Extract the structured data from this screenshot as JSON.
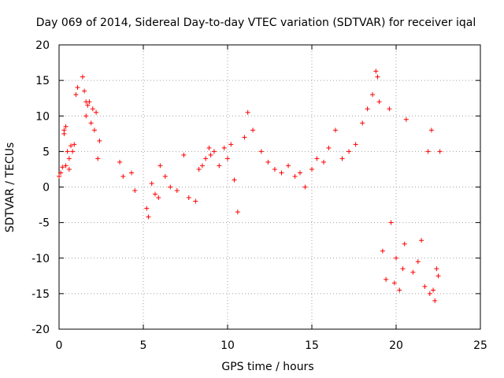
{
  "chart_data": {
    "type": "scatter",
    "title": "Day 069 of 2014, Sidereal Day-to-day VTEC variation (SDTVAR) for receiver iqal",
    "xlabel": "GPS time / hours",
    "ylabel": "SDTVAR / TECUs",
    "xlim": [
      0,
      25
    ],
    "ylim": [
      -20,
      20
    ],
    "xticks": [
      0,
      5,
      10,
      15,
      20,
      25
    ],
    "yticks": [
      -20,
      -15,
      -10,
      -5,
      0,
      5,
      10,
      15,
      20
    ],
    "grid": true,
    "marker": "plus",
    "color": "#ff0000",
    "series": [
      {
        "name": "SDTVAR",
        "x": [
          0.0,
          0.1,
          0.2,
          0.3,
          0.3,
          0.4,
          0.4,
          0.5,
          0.6,
          0.6,
          0.7,
          0.8,
          0.9,
          1.0,
          1.1,
          1.4,
          1.5,
          1.6,
          1.6,
          1.7,
          1.8,
          1.9,
          2.0,
          2.1,
          2.2,
          2.3,
          2.4,
          3.6,
          3.8,
          4.3,
          4.5,
          5.2,
          5.3,
          5.5,
          5.7,
          5.9,
          6.0,
          6.3,
          6.6,
          7.0,
          7.4,
          7.7,
          8.1,
          8.3,
          8.5,
          8.7,
          8.9,
          9.0,
          9.2,
          9.5,
          9.8,
          10.0,
          10.2,
          10.4,
          10.6,
          11.0,
          11.2,
          11.5,
          12.0,
          12.4,
          12.8,
          13.2,
          13.6,
          14.0,
          14.3,
          14.6,
          15.0,
          15.3,
          15.7,
          16.0,
          16.4,
          16.8,
          17.2,
          17.6,
          18.0,
          18.3,
          18.6,
          18.8,
          18.9,
          19.0,
          19.2,
          19.4,
          19.6,
          19.7,
          19.9,
          20.0,
          20.2,
          20.4,
          20.5,
          20.6,
          21.0,
          21.3,
          21.5,
          21.7,
          21.9,
          22.0,
          22.1,
          22.2,
          22.3,
          22.4,
          22.5,
          22.6
        ],
        "y": [
          1.5,
          2.0,
          2.8,
          8.0,
          7.5,
          3.0,
          8.5,
          5.0,
          2.5,
          4.0,
          5.8,
          5.0,
          6.0,
          13.0,
          14.0,
          15.5,
          13.5,
          12.0,
          10.0,
          11.5,
          12.0,
          9.0,
          11.0,
          8.0,
          10.5,
          4.0,
          6.5,
          3.5,
          1.5,
          2.0,
          -0.5,
          -3.0,
          -4.2,
          0.5,
          -1.0,
          -1.5,
          3.0,
          1.5,
          0.0,
          -0.5,
          4.5,
          -1.5,
          -2.0,
          2.5,
          3.0,
          4.0,
          5.5,
          4.5,
          5.0,
          3.0,
          5.5,
          4.0,
          6.0,
          1.0,
          -3.5,
          7.0,
          10.5,
          8.0,
          5.0,
          3.5,
          2.5,
          2.0,
          3.0,
          1.5,
          2.0,
          0.0,
          2.5,
          4.0,
          3.5,
          5.5,
          8.0,
          4.0,
          5.0,
          6.0,
          9.0,
          11.0,
          13.0,
          16.3,
          15.5,
          12.0,
          -9.0,
          -13.0,
          11.0,
          -5.0,
          -13.5,
          -10.0,
          -14.5,
          -11.5,
          -8.0,
          9.5,
          -12.0,
          -10.5,
          -7.5,
          -14.0,
          5.0,
          -15.0,
          8.0,
          -14.5,
          -16.0,
          -11.5,
          -12.5,
          5.0
        ]
      }
    ]
  }
}
